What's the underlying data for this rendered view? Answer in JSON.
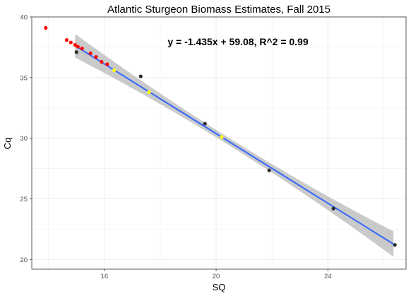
{
  "chart_data": {
    "type": "scatter",
    "title": "Atlantic Sturgeon Biomass Estimates, Fall 2015",
    "xlabel": "SQ",
    "ylabel": "Cq",
    "xlim": [
      13.4,
      26.8
    ],
    "ylim": [
      19.2,
      40.0
    ],
    "x_ticks": [
      16,
      20,
      24
    ],
    "y_ticks": [
      20,
      25,
      30,
      35,
      40
    ],
    "grid": true,
    "annotation": "y = -1.435x + 59.08, R^2 = 0.99",
    "regression": {
      "slope": -1.435,
      "intercept": 59.08,
      "x_range": [
        14.95,
        26.35
      ],
      "ci_halfwidth_ends": 1.05,
      "ci_halfwidth_center": 0.3,
      "ci_center_x": 20.5
    },
    "colors": {
      "line": "#3366ff",
      "ribbon": "#bdbdbd",
      "panel_border": "#333333",
      "grid": "#ebebeb"
    },
    "series": [
      {
        "name": "red",
        "color": "#ff0000",
        "points": [
          [
            13.9,
            39.1
          ],
          [
            14.65,
            38.1
          ],
          [
            14.8,
            37.9
          ],
          [
            14.95,
            37.7
          ],
          [
            15.05,
            37.55
          ],
          [
            15.2,
            37.4
          ],
          [
            15.5,
            37.0
          ],
          [
            15.7,
            36.7
          ],
          [
            15.9,
            36.3
          ],
          [
            16.1,
            36.1
          ]
        ]
      },
      {
        "name": "black",
        "color": "#2b2b2b",
        "points": [
          [
            15.0,
            37.1
          ],
          [
            17.3,
            35.1
          ],
          [
            19.6,
            31.2
          ],
          [
            21.9,
            27.35
          ],
          [
            24.2,
            24.2
          ],
          [
            26.4,
            21.2
          ]
        ]
      },
      {
        "name": "yellow",
        "color": "#ffff00",
        "points": [
          [
            16.35,
            35.6
          ],
          [
            17.6,
            33.8
          ],
          [
            20.2,
            30.1
          ]
        ]
      }
    ]
  }
}
